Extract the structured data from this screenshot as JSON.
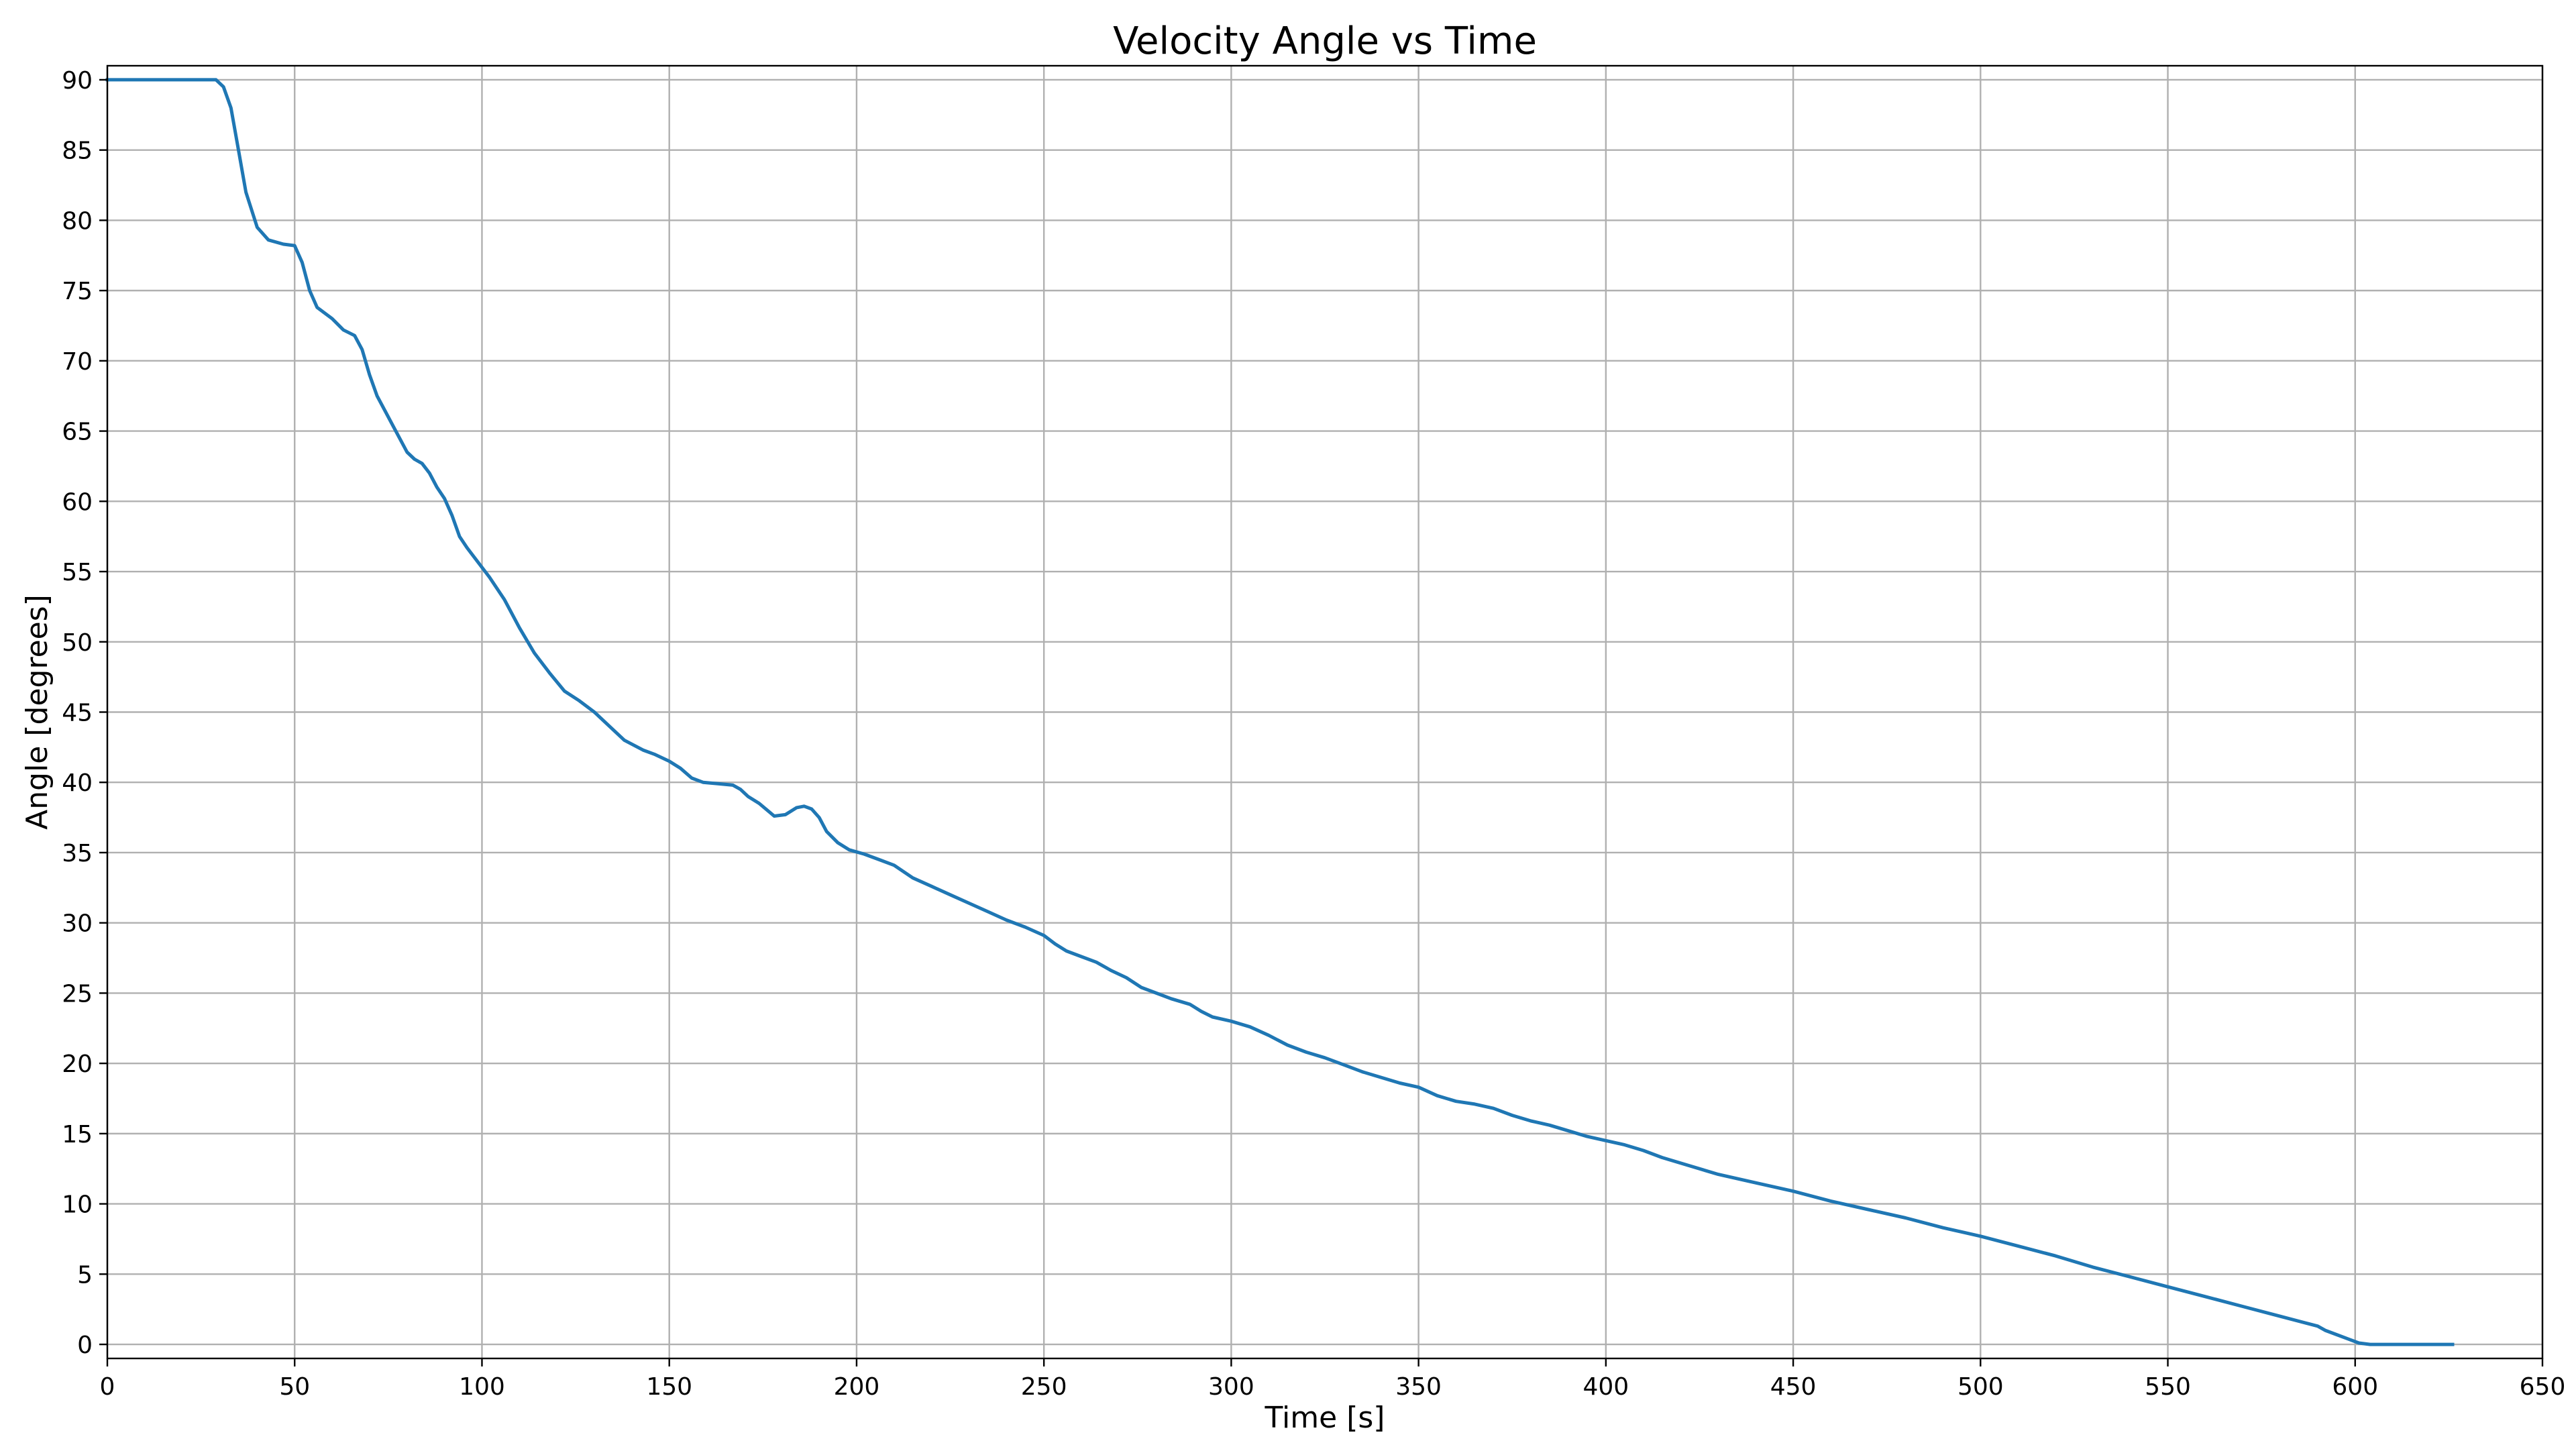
{
  "chart_data": {
    "type": "line",
    "title": "Velocity Angle vs Time",
    "xlabel": "Time [s]",
    "ylabel": "Angle [degrees]",
    "xlim": [
      0,
      650
    ],
    "ylim": [
      -1,
      91
    ],
    "grid": true,
    "xticks": [
      0,
      50,
      100,
      150,
      200,
      250,
      300,
      350,
      400,
      450,
      500,
      550,
      600,
      650
    ],
    "yticks": [
      0,
      5,
      10,
      15,
      20,
      25,
      30,
      35,
      40,
      45,
      50,
      55,
      60,
      65,
      70,
      75,
      80,
      85,
      90
    ],
    "series": [
      {
        "color": "#1f77b4",
        "x": [
          0,
          29,
          31,
          33,
          35,
          37,
          40,
          43,
          47,
          50,
          52,
          54,
          56,
          58,
          60,
          63,
          66,
          68,
          70,
          72,
          74,
          77,
          80,
          82,
          84,
          86,
          88,
          90,
          92,
          94,
          96,
          98,
          102,
          106,
          110,
          114,
          118,
          122,
          126,
          130,
          134,
          138,
          143,
          146,
          150,
          153,
          156,
          159,
          163,
          167,
          169,
          171,
          174,
          178,
          181,
          184,
          186,
          188,
          190,
          192,
          195,
          198,
          202,
          206,
          210,
          215,
          220,
          225,
          230,
          235,
          240,
          245,
          250,
          253,
          256,
          260,
          264,
          268,
          272,
          276,
          280,
          284,
          289,
          292,
          295,
          300,
          305,
          310,
          315,
          320,
          325,
          330,
          335,
          340,
          345,
          350,
          355,
          360,
          365,
          370,
          375,
          380,
          385,
          390,
          395,
          400,
          405,
          410,
          415,
          420,
          430,
          440,
          450,
          460,
          470,
          480,
          490,
          500,
          510,
          520,
          530,
          540,
          550,
          560,
          570,
          580,
          590,
          592,
          595,
          598,
          601,
          604,
          610,
          626
        ],
        "y": [
          90,
          90,
          89.5,
          88,
          85,
          82,
          79.5,
          78.6,
          78.3,
          78.2,
          77,
          75,
          73.8,
          73.4,
          73,
          72.2,
          71.8,
          70.8,
          69,
          67.5,
          66.5,
          65,
          63.5,
          63,
          62.7,
          62,
          61,
          60.2,
          59,
          57.5,
          56.7,
          56,
          54.6,
          53,
          51,
          49.2,
          47.8,
          46.5,
          45.8,
          45,
          44,
          43,
          42.3,
          42,
          41.5,
          41,
          40.3,
          40,
          39.9,
          39.8,
          39.5,
          39,
          38.5,
          37.6,
          37.7,
          38.2,
          38.3,
          38.1,
          37.5,
          36.5,
          35.7,
          35.2,
          34.9,
          34.5,
          34.1,
          33.2,
          32.6,
          32,
          31.4,
          30.8,
          30.2,
          29.7,
          29.1,
          28.5,
          28,
          27.6,
          27.2,
          26.6,
          26.1,
          25.4,
          25,
          24.6,
          24.2,
          23.7,
          23.3,
          23,
          22.6,
          22,
          21.3,
          20.8,
          20.4,
          19.9,
          19.4,
          19,
          18.6,
          18.3,
          17.7,
          17.3,
          17.1,
          16.8,
          16.3,
          15.9,
          15.6,
          15.2,
          14.8,
          14.5,
          14.2,
          13.8,
          13.3,
          12.9,
          12.1,
          11.5,
          10.9,
          10.2,
          9.6,
          9,
          8.3,
          7.7,
          7,
          6.3,
          5.5,
          4.8,
          4.1,
          3.4,
          2.7,
          2,
          1.3,
          1,
          0.7,
          0.4,
          0.1,
          0,
          0,
          0
        ]
      }
    ]
  }
}
